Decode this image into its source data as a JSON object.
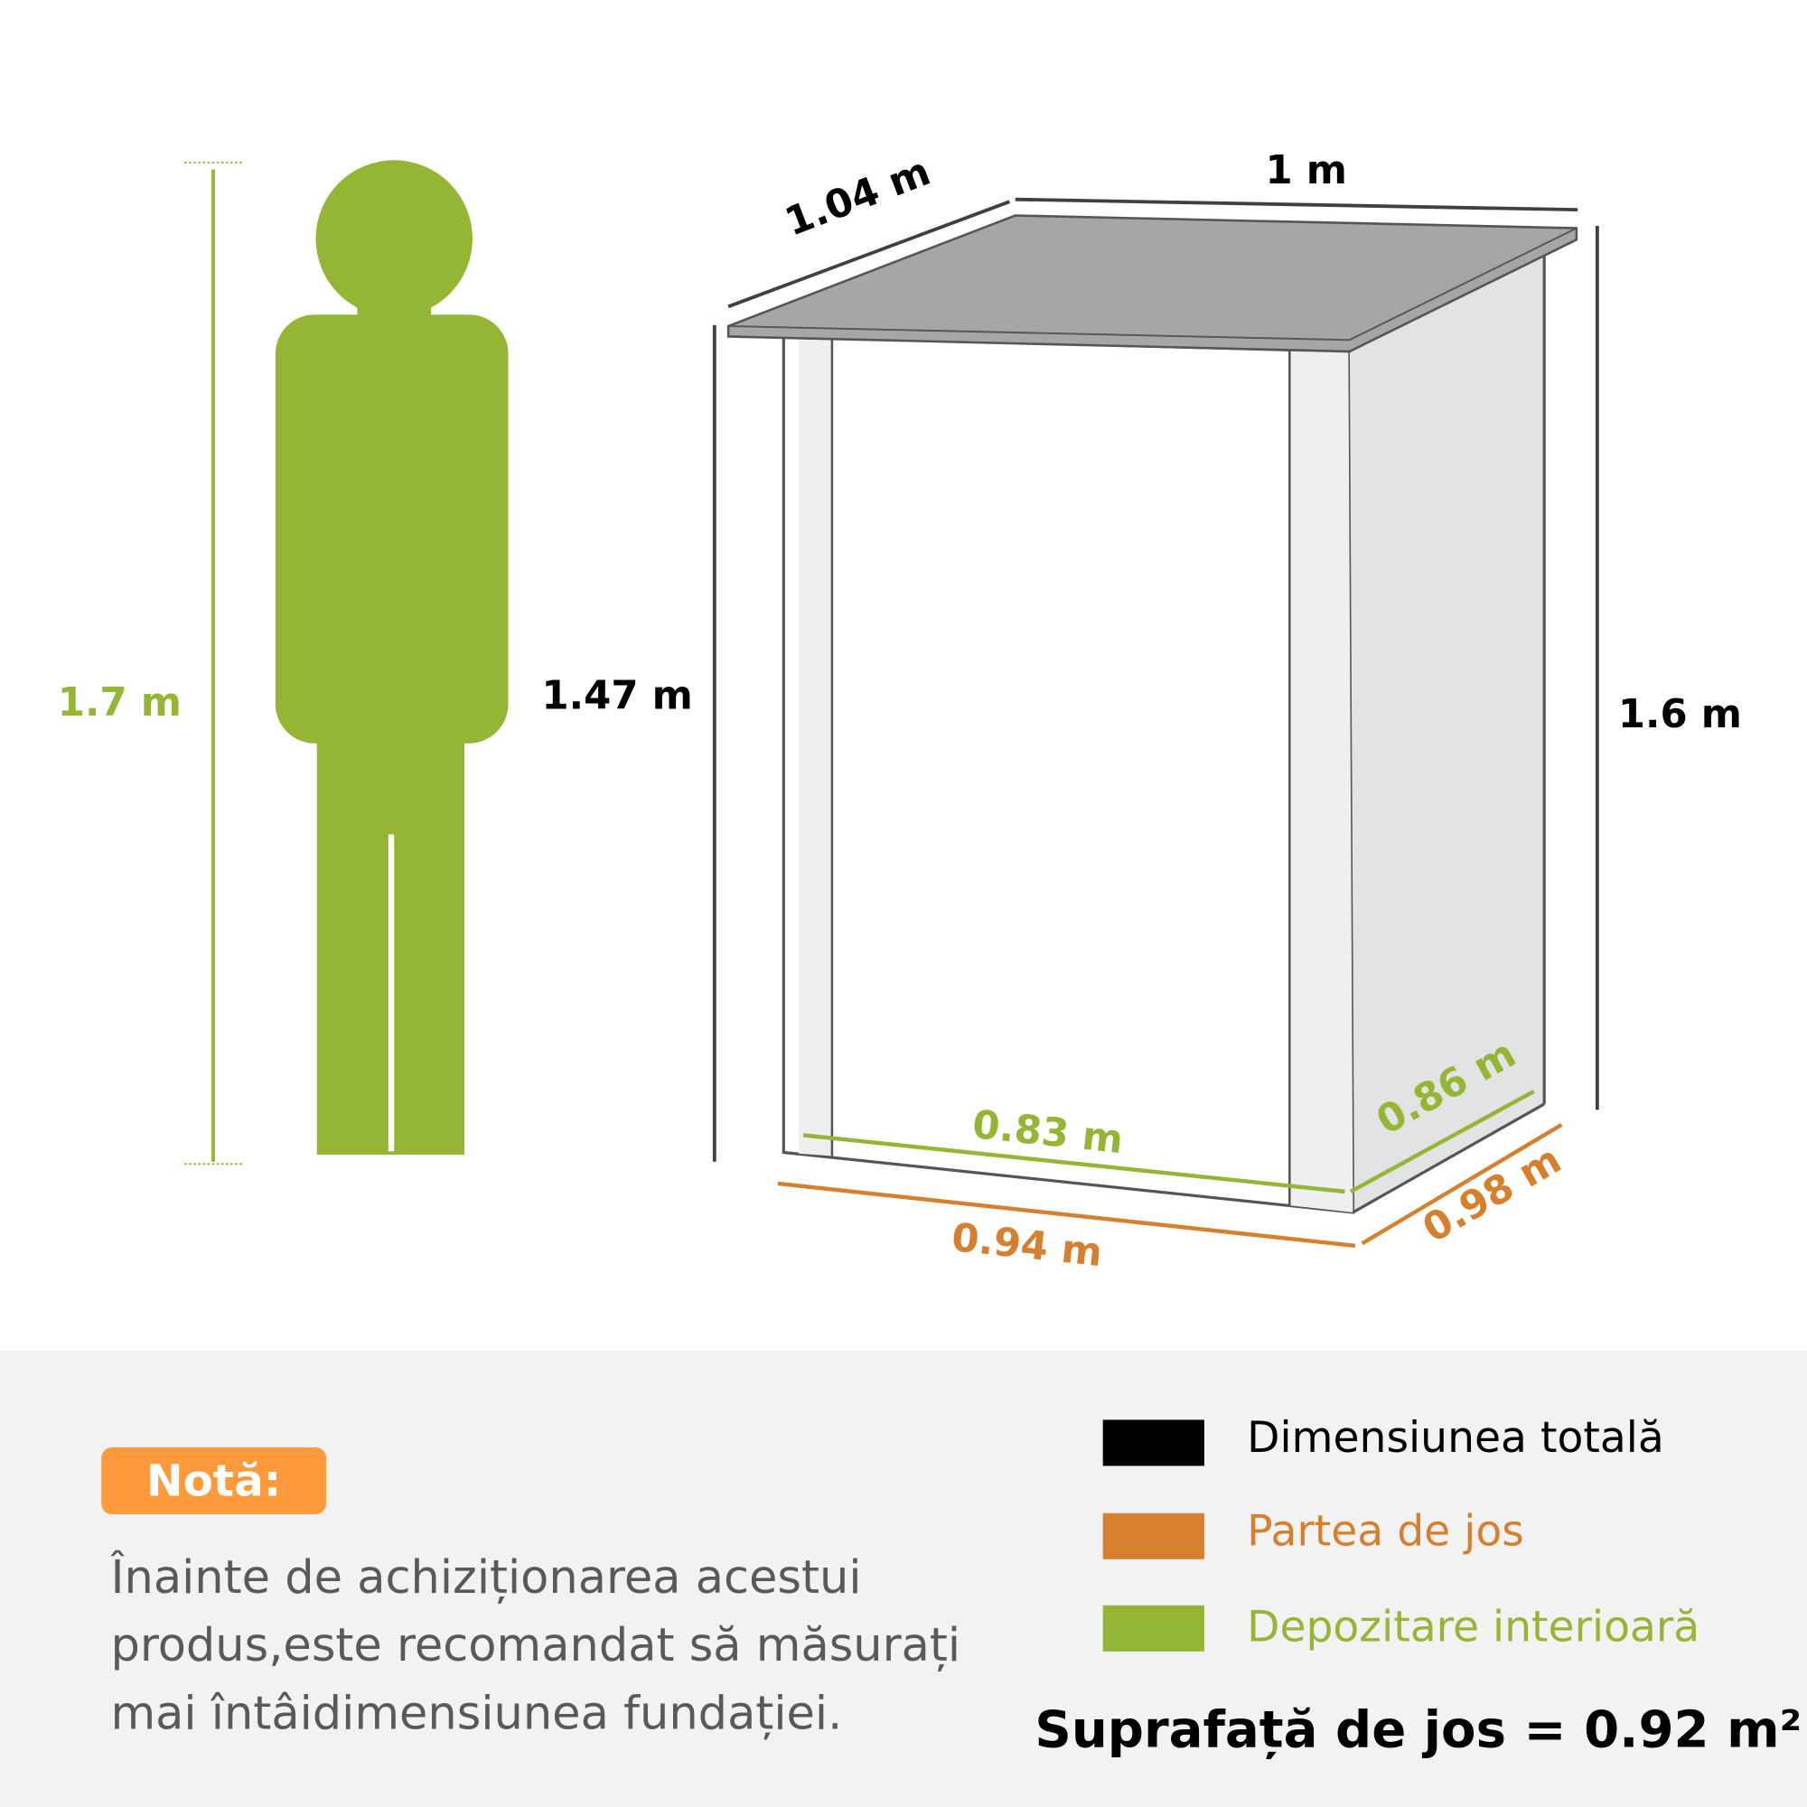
{
  "dimensions": {
    "person_height": "1.7 m",
    "front_height": "1.47 m",
    "back_height": "1.6 m",
    "roof_depth": "1.04 m",
    "roof_width": "1 m",
    "inner_width": "0.83 m",
    "inner_depth": "0.86 m",
    "base_width": "0.94 m",
    "base_depth": "0.98 m"
  },
  "note": {
    "badge": "Notă:",
    "text": "Înainte de achiziționarea acestui produs,este recomandat să măsurați mai întâidimensiunea fundației."
  },
  "legend": [
    {
      "label": "Dimensiunea totală",
      "color": "#000000"
    },
    {
      "label": "Partea de jos",
      "color": "#d6802e"
    },
    {
      "label": "Depozitare interioară",
      "color": "#95b535"
    }
  ],
  "area": "Suprafață de jos = 0.92 m²",
  "colors": {
    "green": "#95b535",
    "orange": "#d6802e",
    "roof": "#a6a6a6",
    "note": "#fe9a3b"
  }
}
